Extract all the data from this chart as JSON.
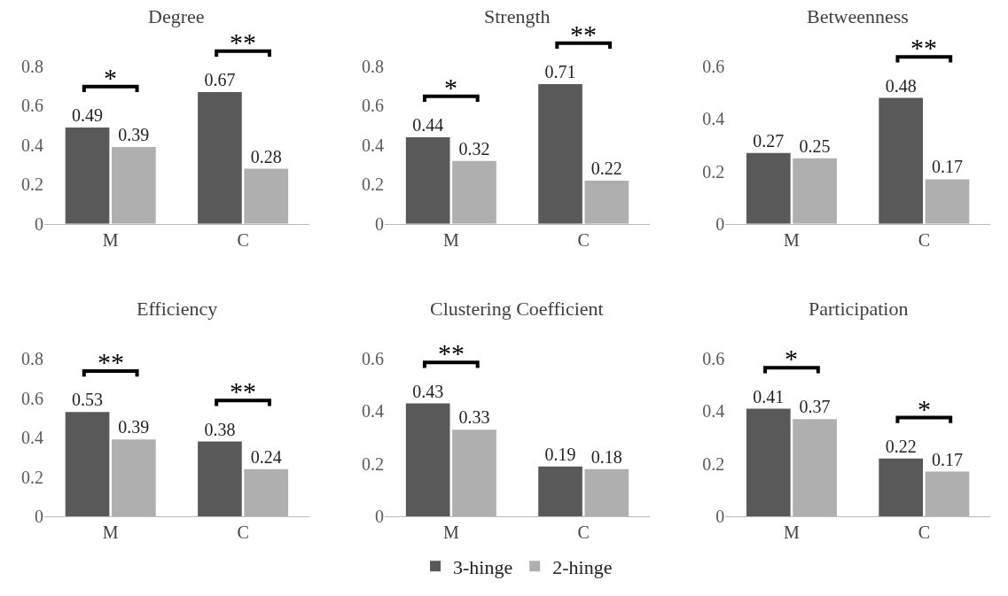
{
  "chart_data": [
    {
      "type": "bar",
      "title": "Degree",
      "categories": [
        "M",
        "C"
      ],
      "series": [
        {
          "name": "3-hinge",
          "color": "#595959",
          "values": [
            0.49,
            0.67
          ]
        },
        {
          "name": "2-hinge",
          "color": "#afafaf",
          "values": [
            0.39,
            0.28
          ]
        }
      ],
      "ylim": [
        0,
        0.8
      ],
      "yticks": [
        0,
        0.2,
        0.4,
        0.6,
        0.8
      ],
      "data_labels": true,
      "legend": "bottom",
      "annotations": [
        "*",
        "**"
      ]
    },
    {
      "type": "bar",
      "title": "Strength",
      "categories": [
        "M",
        "C"
      ],
      "series": [
        {
          "name": "3-hinge",
          "color": "#595959",
          "values": [
            0.44,
            0.71
          ]
        },
        {
          "name": "2-hinge",
          "color": "#afafaf",
          "values": [
            0.32,
            0.22
          ]
        }
      ],
      "ylim": [
        0,
        0.8
      ],
      "yticks": [
        0,
        0.2,
        0.4,
        0.6,
        0.8
      ],
      "data_labels": true,
      "legend": "bottom",
      "annotations": [
        "*",
        "**"
      ]
    },
    {
      "type": "bar",
      "title": "Betweenness",
      "categories": [
        "M",
        "C"
      ],
      "series": [
        {
          "name": "3-hinge",
          "color": "#595959",
          "values": [
            0.27,
            0.48
          ]
        },
        {
          "name": "2-hinge",
          "color": "#afafaf",
          "values": [
            0.25,
            0.17
          ]
        }
      ],
      "ylim": [
        0,
        0.6
      ],
      "yticks": [
        0,
        0.2,
        0.4,
        0.6
      ],
      "data_labels": true,
      "legend": "bottom",
      "annotations": [
        "**"
      ]
    },
    {
      "type": "bar",
      "title": "Efficiency",
      "categories": [
        "M",
        "C"
      ],
      "series": [
        {
          "name": "3-hinge",
          "color": "#595959",
          "values": [
            0.53,
            0.38
          ]
        },
        {
          "name": "2-hinge",
          "color": "#afafaf",
          "values": [
            0.39,
            0.24
          ]
        }
      ],
      "ylim": [
        0,
        0.8
      ],
      "yticks": [
        0,
        0.2,
        0.4,
        0.6,
        0.8
      ],
      "data_labels": true,
      "legend": "bottom",
      "annotations": [
        "**",
        "**"
      ]
    },
    {
      "type": "bar",
      "title": "Clustering Coefficient",
      "categories": [
        "M",
        "C"
      ],
      "series": [
        {
          "name": "3-hinge",
          "color": "#595959",
          "values": [
            0.43,
            0.19
          ]
        },
        {
          "name": "2-hinge",
          "color": "#afafaf",
          "values": [
            0.33,
            0.18
          ]
        }
      ],
      "ylim": [
        0,
        0.6
      ],
      "yticks": [
        0,
        0.2,
        0.4,
        0.6
      ],
      "data_labels": true,
      "legend": "bottom",
      "annotations": [
        "**"
      ]
    },
    {
      "type": "bar",
      "title": "Participation",
      "categories": [
        "M",
        "C"
      ],
      "series": [
        {
          "name": "3-hinge",
          "color": "#595959",
          "values": [
            0.41,
            0.22
          ]
        },
        {
          "name": "2-hinge",
          "color": "#afafaf",
          "values": [
            0.37,
            0.17
          ]
        }
      ],
      "ylim": [
        0,
        0.6
      ],
      "yticks": [
        0,
        0.2,
        0.4,
        0.6
      ],
      "data_labels": true,
      "legend": "bottom",
      "annotations": [
        "*",
        "*"
      ]
    }
  ]
}
